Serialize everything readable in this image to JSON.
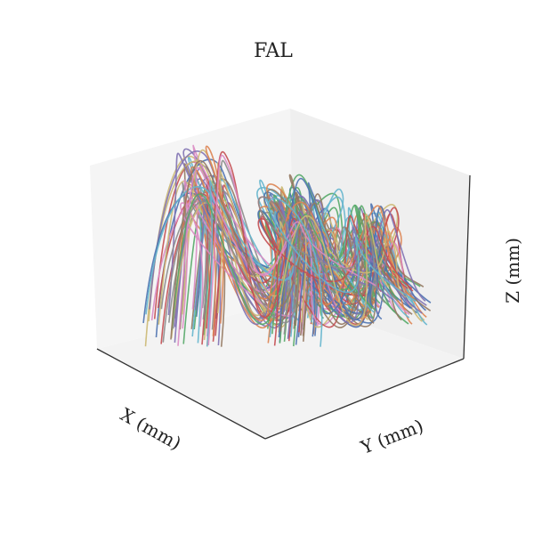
{
  "chart_data": {
    "type": "line",
    "projection": "3d",
    "title": "FAL",
    "xlabel": "X (mm)",
    "ylabel": "Y (mm)",
    "zlabel": "Z (mm)",
    "grid": false,
    "tick_labels": "none",
    "series_count": 120,
    "palette": [
      "#4c72b0",
      "#dd8452",
      "#55a868",
      "#c44e52",
      "#8172b3",
      "#937860",
      "#da8bc3",
      "#8c8c8c",
      "#ccb974",
      "#64b5cd"
    ]
  }
}
